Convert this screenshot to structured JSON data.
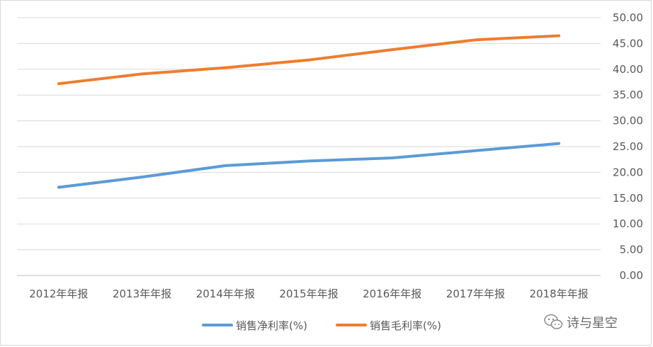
{
  "chart_data": {
    "type": "line",
    "title": "",
    "xlabel": "",
    "ylabel": "",
    "categories": [
      "2012年年报",
      "2013年年报",
      "2014年年报",
      "2015年年报",
      "2016年年报",
      "2017年年报",
      "2018年年报"
    ],
    "series": [
      {
        "name": "销售净利率(%)",
        "color": "#5b9bd5",
        "values": [
          17.1,
          19.1,
          21.3,
          22.2,
          22.8,
          24.2,
          25.6
        ]
      },
      {
        "name": "销售毛利率(%)",
        "color": "#ed7d31",
        "values": [
          37.2,
          39.1,
          40.3,
          41.8,
          43.8,
          45.7,
          46.5
        ]
      }
    ],
    "ylim": [
      0,
      50
    ],
    "y_ticks": [
      "0.00",
      "5.00",
      "10.00",
      "15.00",
      "20.00",
      "25.00",
      "30.00",
      "35.00",
      "40.00",
      "45.00",
      "50.00"
    ],
    "y_axis_side": "right",
    "grid": true,
    "legend_position": "bottom"
  },
  "watermark": {
    "text": "诗与星空",
    "icon": "wechat-icon"
  }
}
